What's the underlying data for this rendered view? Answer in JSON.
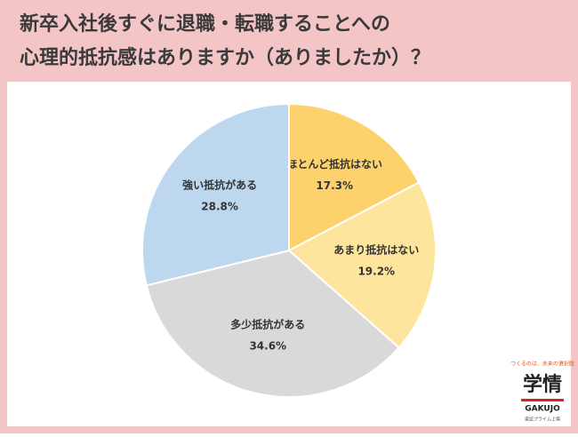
{
  "chart_data": {
    "type": "pie",
    "title": [
      "新卒入社後すぐに退職・転職することへの",
      "心理的抵抗感はありますか（ありましたか）？"
    ],
    "categories": [
      "ほとんど抵抗はない",
      "あまり抵抗はない",
      "多少抵抗がある",
      "強い抵抗がある"
    ],
    "values": [
      17.3,
      19.2,
      34.6,
      28.8
    ],
    "value_labels": [
      "17.3%",
      "19.2%",
      "34.6%",
      "28.8%"
    ],
    "colors": [
      "#fdd26c",
      "#fee59d",
      "#d9d9d9",
      "#bdd7ee"
    ]
  },
  "logo": {
    "tagline": "つくるのは、未来の選択肢",
    "mark": "学情",
    "name": "GAKUJO",
    "note": "東証プライム上場"
  }
}
